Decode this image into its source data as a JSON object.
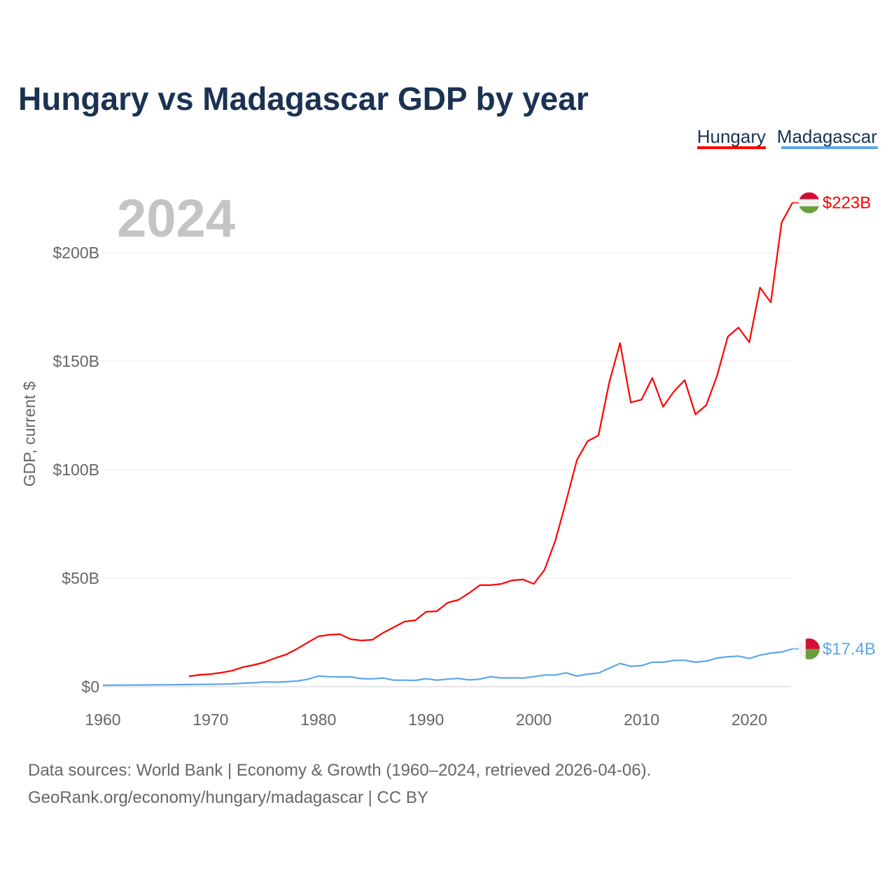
{
  "chart_data": {
    "type": "line",
    "title": "Hungary vs Madagascar GDP by year",
    "current_year_label": "2024",
    "xlabel": "",
    "ylabel": "GDP, current $",
    "xlim": [
      1960,
      2024
    ],
    "ylim": [
      0,
      200
    ],
    "x_ticks": [
      1960,
      1970,
      1980,
      1990,
      2000,
      2010,
      2020
    ],
    "y_ticks": [
      {
        "value": 0,
        "label": "$0"
      },
      {
        "value": 50,
        "label": "$50B"
      },
      {
        "value": 100,
        "label": "$100B"
      },
      {
        "value": 150,
        "label": "$150B"
      },
      {
        "value": 200,
        "label": "$200B"
      }
    ],
    "grid": true,
    "legend_position": "top-right",
    "series": [
      {
        "name": "Hungary",
        "color": "#ff0000",
        "end_label": "$223B",
        "flag": "hungary-flag",
        "x": [
          1968,
          1969,
          1970,
          1971,
          1972,
          1973,
          1974,
          1975,
          1976,
          1977,
          1978,
          1979,
          1980,
          1981,
          1982,
          1983,
          1984,
          1985,
          1986,
          1987,
          1988,
          1989,
          1990,
          1991,
          1992,
          1993,
          1994,
          1995,
          1996,
          1997,
          1998,
          1999,
          2000,
          2001,
          2002,
          2003,
          2004,
          2005,
          2006,
          2007,
          2008,
          2009,
          2010,
          2011,
          2012,
          2013,
          2014,
          2015,
          2016,
          2017,
          2018,
          2019,
          2020,
          2021,
          2022,
          2023,
          2024
        ],
        "values": [
          4.8,
          5.5,
          5.8,
          6.5,
          7.4,
          9.0,
          10.0,
          11.3,
          13.2,
          14.8,
          17.4,
          20.3,
          23.2,
          23.9,
          24.2,
          21.9,
          21.3,
          21.6,
          24.8,
          27.4,
          30.0,
          30.6,
          34.5,
          34.8,
          38.7,
          40.0,
          43.2,
          46.8,
          46.8,
          47.4,
          49.0,
          49.4,
          47.4,
          53.9,
          67.4,
          85.5,
          104.5,
          113.2,
          115.8,
          140.3,
          158.4,
          131.0,
          132.3,
          142.3,
          129.0,
          136.0,
          141.3,
          125.5,
          129.7,
          143.2,
          161.3,
          165.5,
          158.7,
          183.9,
          177.1,
          213.9,
          223.0
        ]
      },
      {
        "name": "Madagascar",
        "color": "#5aa6ee",
        "end_label": "$17.4B",
        "flag": "madagascar-flag",
        "x": [
          1960,
          1961,
          1962,
          1963,
          1964,
          1965,
          1966,
          1967,
          1968,
          1969,
          1970,
          1971,
          1972,
          1973,
          1974,
          1975,
          1976,
          1977,
          1978,
          1979,
          1980,
          1981,
          1982,
          1983,
          1984,
          1985,
          1986,
          1987,
          1988,
          1989,
          1990,
          1991,
          1992,
          1993,
          1994,
          1995,
          1996,
          1997,
          1998,
          1999,
          2000,
          2001,
          2002,
          2003,
          2004,
          2005,
          2006,
          2007,
          2008,
          2009,
          2010,
          2011,
          2012,
          2013,
          2014,
          2015,
          2016,
          2017,
          2018,
          2019,
          2020,
          2021,
          2022,
          2023,
          2024
        ],
        "values": [
          0.67,
          0.7,
          0.74,
          0.76,
          0.8,
          0.85,
          0.9,
          0.95,
          1.0,
          1.05,
          1.1,
          1.2,
          1.3,
          1.6,
          1.8,
          2.2,
          2.1,
          2.3,
          2.6,
          3.4,
          4.9,
          4.6,
          4.5,
          4.5,
          3.7,
          3.6,
          4.0,
          3.0,
          3.0,
          2.9,
          3.7,
          3.0,
          3.5,
          3.8,
          3.1,
          3.5,
          4.6,
          4.0,
          4.1,
          4.0,
          4.6,
          5.4,
          5.4,
          6.4,
          4.9,
          5.8,
          6.3,
          8.5,
          10.7,
          9.4,
          9.7,
          11.3,
          11.3,
          12.1,
          12.2,
          11.3,
          11.8,
          13.2,
          13.8,
          14.1,
          13.0,
          14.5,
          15.5,
          16.0,
          17.4
        ]
      }
    ],
    "footer": {
      "line1": "Data sources: World Bank | Economy & Growth (1960–2024, retrieved 2026-04-06).",
      "line2": "GeoRank.org/economy/hungary/madagascar | CC BY"
    }
  }
}
